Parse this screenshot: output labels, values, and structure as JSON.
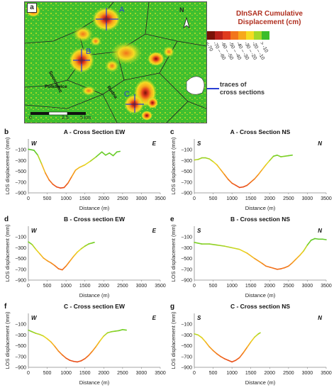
{
  "map": {
    "panel_letter": "a",
    "place_labels": [
      "Sosnowiec",
      "Polkowice",
      "Rudna"
    ],
    "profile_letters": [
      "A",
      "B",
      "C"
    ],
    "north": "N",
    "scale_labels": [
      "0",
      "2.5",
      "5 km"
    ]
  },
  "legend": {
    "title_line1": "DInSAR Cumulative",
    "title_line2": "Displacement (cm)",
    "classes": [
      "<-70",
      "-70 – -60",
      "-60 – -50",
      "-50 – -40",
      "-40 – -30",
      "-30 – -20",
      "-20 – -10",
      "> -10"
    ],
    "colors": [
      "#7a1208",
      "#b8201a",
      "#e03a1f",
      "#f2751c",
      "#f7a81c",
      "#f4dc22",
      "#a3d828",
      "#3bbd2b"
    ],
    "trace_label_line1": "traces of",
    "trace_label_line2": "cross sections",
    "trace_color": "#2a3fd4"
  },
  "chart_data": [
    {
      "id": "b",
      "type": "line",
      "title": "A - Cross Section EW",
      "xlabel": "Distance (m)",
      "ylabel": "LOS displacement (mm)",
      "left_label": "W",
      "right_label": "E",
      "xlim": [
        0,
        3500
      ],
      "ylim": [
        -900,
        100
      ],
      "xticks": [
        "0",
        "500",
        "1000",
        "1500",
        "2000",
        "2500",
        "3000",
        "3500"
      ],
      "yticks": [
        "-100",
        "-300",
        "-500",
        "-700",
        "-900"
      ],
      "x": [
        0,
        150,
        250,
        350,
        450,
        550,
        650,
        750,
        850,
        950,
        1050,
        1150,
        1250,
        1350,
        1500,
        1650,
        1800,
        1950,
        2050,
        2150,
        2250,
        2350,
        2430
      ],
      "y": [
        -90,
        -110,
        -200,
        -360,
        -530,
        -660,
        -740,
        -790,
        -810,
        -800,
        -720,
        -600,
        -480,
        -430,
        -380,
        -310,
        -230,
        -140,
        -200,
        -160,
        -210,
        -140,
        -130
      ]
    },
    {
      "id": "c",
      "type": "line",
      "title": "A - Cross Section NS",
      "xlabel": "Distance (m)",
      "ylabel": "LOS displacement (mm)",
      "left_label": "S",
      "right_label": "N",
      "xlim": [
        0,
        3500
      ],
      "ylim": [
        -900,
        100
      ],
      "xticks": [
        "0",
        "500",
        "1000",
        "1500",
        "2000",
        "2500",
        "3000",
        "3500"
      ],
      "yticks": [
        "-100",
        "-300",
        "-500",
        "-700",
        "-900"
      ],
      "x": [
        0,
        100,
        200,
        300,
        400,
        500,
        600,
        700,
        800,
        900,
        1000,
        1100,
        1200,
        1300,
        1400,
        1500,
        1600,
        1700,
        1800,
        1900,
        2000,
        2100,
        2200,
        2300,
        2400,
        2500,
        2600
      ],
      "y": [
        -290,
        -280,
        -250,
        -250,
        -270,
        -320,
        -380,
        -470,
        -560,
        -650,
        -720,
        -760,
        -800,
        -790,
        -760,
        -700,
        -640,
        -560,
        -470,
        -380,
        -300,
        -220,
        -200,
        -230,
        -220,
        -210,
        -200
      ]
    },
    {
      "id": "d",
      "type": "line",
      "title": "B - Cross section EW",
      "xlabel": "Distance (m)",
      "ylabel": "LOS displacement (mm)",
      "left_label": "W",
      "right_label": "E",
      "xlim": [
        0,
        3500
      ],
      "ylim": [
        -900,
        100
      ],
      "xticks": [
        "0",
        "500",
        "1000",
        "1500",
        "2000",
        "2500",
        "3000",
        "3500"
      ],
      "yticks": [
        "-100",
        "-300",
        "-500",
        "-700",
        "-900"
      ],
      "x": [
        0,
        100,
        200,
        300,
        400,
        500,
        600,
        700,
        800,
        900,
        1000,
        1100,
        1200,
        1300,
        1400,
        1500,
        1600,
        1700,
        1750
      ],
      "y": [
        -190,
        -240,
        -330,
        -410,
        -490,
        -540,
        -580,
        -630,
        -690,
        -710,
        -640,
        -550,
        -460,
        -380,
        -320,
        -270,
        -230,
        -210,
        -200
      ]
    },
    {
      "id": "e",
      "type": "line",
      "title": "B - Cross section NS",
      "xlabel": "Distance (m)",
      "ylabel": "LOS displacement (mm)",
      "left_label": "S",
      "right_label": "N",
      "xlim": [
        0,
        3500
      ],
      "ylim": [
        -900,
        100
      ],
      "xticks": [
        "0",
        "500",
        "1000",
        "1500",
        "2000",
        "2500",
        "3000",
        "3500"
      ],
      "yticks": [
        "-100",
        "-300",
        "-500",
        "-700",
        "-900"
      ],
      "x": [
        0,
        200,
        400,
        600,
        800,
        1000,
        1200,
        1400,
        1600,
        1800,
        1900,
        2000,
        2100,
        2200,
        2300,
        2400,
        2500,
        2600,
        2700,
        2800,
        2900,
        3000,
        3100,
        3200,
        3300,
        3400,
        3500
      ],
      "y": [
        -200,
        -230,
        -230,
        -250,
        -270,
        -300,
        -330,
        -400,
        -500,
        -590,
        -640,
        -660,
        -680,
        -700,
        -690,
        -670,
        -640,
        -580,
        -510,
        -440,
        -360,
        -250,
        -160,
        -130,
        -140,
        -140,
        -150
      ]
    },
    {
      "id": "f",
      "type": "line",
      "title": "C - Cross section EW",
      "xlabel": "Distance (m)",
      "ylabel": "LOS displacement (mm)",
      "left_label": "W",
      "right_label": "E",
      "xlim": [
        0,
        3500
      ],
      "ylim": [
        -900,
        100
      ],
      "xticks": [
        "0",
        "500",
        "1000",
        "1500",
        "2000",
        "2500",
        "3000",
        "3500"
      ],
      "yticks": [
        "-100",
        "-300",
        "-500",
        "-700",
        "-900"
      ],
      "x": [
        0,
        100,
        200,
        300,
        400,
        500,
        600,
        700,
        800,
        900,
        1000,
        1100,
        1200,
        1300,
        1400,
        1500,
        1600,
        1700,
        1800,
        1900,
        2000,
        2100,
        2200,
        2300,
        2400,
        2500,
        2600
      ],
      "y": [
        -210,
        -240,
        -270,
        -290,
        -320,
        -370,
        -430,
        -510,
        -600,
        -670,
        -730,
        -770,
        -790,
        -800,
        -780,
        -740,
        -680,
        -600,
        -510,
        -410,
        -320,
        -260,
        -240,
        -230,
        -220,
        -200,
        -210
      ]
    },
    {
      "id": "g",
      "type": "line",
      "title": "C - Cross section NS",
      "xlabel": "Distance (m)",
      "ylabel": "LOS displacement (mm)",
      "left_label": "S",
      "right_label": "N",
      "xlim": [
        0,
        3500
      ],
      "ylim": [
        -900,
        100
      ],
      "xticks": [
        "0",
        "500",
        "1000",
        "1500",
        "2000",
        "2500",
        "3000",
        "3500"
      ],
      "yticks": [
        "-100",
        "-300",
        "-500",
        "-700",
        "-900"
      ],
      "x": [
        0,
        100,
        200,
        300,
        400,
        500,
        600,
        700,
        800,
        900,
        1000,
        1100,
        1200,
        1300,
        1400,
        1500,
        1600,
        1700,
        1750
      ],
      "y": [
        -280,
        -300,
        -350,
        -430,
        -520,
        -590,
        -650,
        -700,
        -740,
        -770,
        -800,
        -770,
        -720,
        -630,
        -530,
        -430,
        -340,
        -280,
        -260
      ]
    }
  ]
}
